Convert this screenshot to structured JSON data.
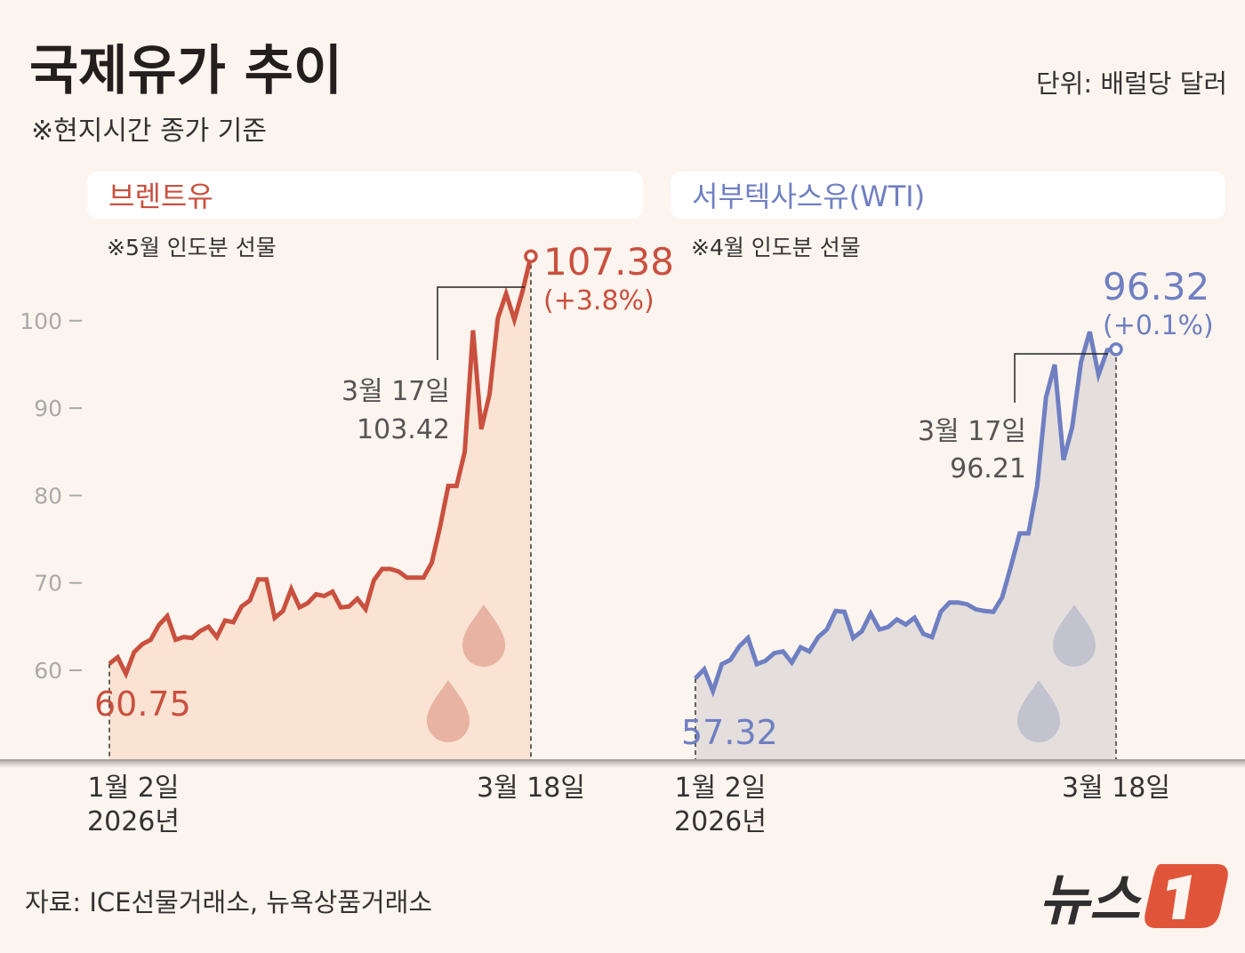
{
  "header": {
    "title": "국제유가 추이",
    "subtitle": "※현지시간 종가 기준",
    "unit": "단위: 배럴당 달러"
  },
  "colors": {
    "background": "#fcf4ee",
    "brent": "#c9503f",
    "wti": "#6f7fc2",
    "brent_fill": "#fae3d2",
    "wti_fill": "#e4dfdd",
    "logo": "#e0553a"
  },
  "chart_data": [
    {
      "type": "area",
      "title": "브렌트유",
      "note": "※5월 인도분 선물",
      "y_ticks": [
        "100",
        "90",
        "80",
        "70",
        "60"
      ],
      "ylim": [
        55,
        110
      ],
      "grid": false,
      "x_tick_labels": [
        {
          "line1": "1월 2일",
          "line2": "2026년"
        },
        {
          "line1": "3월 18일",
          "line2": ""
        }
      ],
      "start_label": "60.75",
      "end_label": "107.38",
      "end_change": "(+3.8%)",
      "annotation": {
        "date": "3월 17일",
        "value": "103.42"
      },
      "series": [
        {
          "values": [
            60.75,
            61.5,
            59.6,
            62.1,
            63.0,
            63.5,
            65.2,
            66.2,
            63.5,
            63.8,
            63.7,
            64.5,
            65.0,
            63.8,
            65.7,
            65.5,
            67.3,
            68.0,
            70.4,
            70.4,
            66.0,
            66.8,
            69.3,
            67.2,
            67.7,
            68.7,
            68.5,
            69.0,
            67.2,
            67.3,
            68.2,
            67.0,
            70.3,
            71.6,
            71.6,
            71.3,
            70.6,
            70.6,
            70.6,
            72.3,
            76.4,
            81.1,
            81.1,
            85.0,
            98.9,
            87.6,
            91.6,
            100.3,
            103.1,
            100.1,
            103.42,
            107.38
          ]
        }
      ]
    },
    {
      "type": "area",
      "title": "서부텍사스유(WTI)",
      "note": "※4월 인도분 선물",
      "ylim": [
        55,
        100
      ],
      "grid": false,
      "x_tick_labels": [
        {
          "line1": "1월 2일",
          "line2": "2026년"
        },
        {
          "line1": "3월 18일",
          "line2": ""
        }
      ],
      "start_label": "57.32",
      "end_label": "96.32",
      "end_change": "(+0.1%)",
      "annotation": {
        "date": "3월 17일",
        "value": "96.21"
      },
      "series": [
        {
          "values": [
            57.32,
            58.4,
            55.8,
            59.0,
            59.5,
            61.1,
            62.1,
            59.0,
            59.4,
            60.3,
            60.5,
            59.2,
            61.0,
            60.5,
            62.2,
            63.1,
            65.3,
            65.2,
            62.1,
            62.9,
            65.0,
            63.1,
            63.4,
            64.3,
            63.7,
            64.5,
            62.6,
            62.2,
            65.2,
            66.3,
            66.3,
            66.1,
            65.5,
            65.3,
            65.2,
            66.9,
            70.6,
            74.5,
            74.5,
            80.1,
            90.6,
            94.5,
            83.2,
            87.1,
            94.8,
            98.4,
            93.3,
            96.21,
            96.32
          ]
        }
      ]
    }
  ],
  "footer": {
    "source": "자료: ICE선물거래소, 뉴욕상품거래소",
    "logo_text": "뉴스1"
  }
}
